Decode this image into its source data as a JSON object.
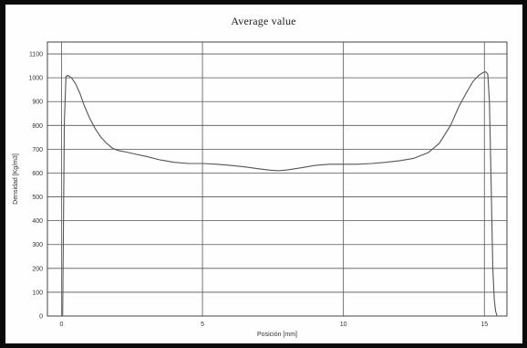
{
  "chart_data": {
    "type": "line",
    "title": "Average value",
    "xlabel": "Posición [mm]",
    "ylabel": "Densidad [Kg/m3]",
    "xlim": [
      -0.5,
      15.8
    ],
    "ylim": [
      0,
      1150
    ],
    "x_ticks": [
      0,
      5,
      10,
      15
    ],
    "y_ticks": [
      0,
      100,
      200,
      300,
      400,
      500,
      600,
      700,
      800,
      900,
      1000,
      1100
    ],
    "grid": true,
    "legend": "none",
    "line_color": "#555555",
    "grid_color": "#555555",
    "series": [
      {
        "x": [
          0.04,
          0.1,
          0.16,
          0.22,
          0.35,
          0.5,
          0.65,
          0.8,
          1.0,
          1.2,
          1.4,
          1.6,
          1.8,
          2.0,
          2.3,
          2.6,
          3.0,
          3.5,
          4.0,
          4.5,
          5.0,
          5.5,
          6.0,
          6.5,
          7.0,
          7.4,
          7.7,
          8.0,
          8.5,
          9.0,
          9.5,
          10.0,
          10.5,
          11.0,
          11.5,
          12.0,
          12.5,
          13.0,
          13.4,
          13.8,
          14.1,
          14.4,
          14.6,
          14.8,
          14.95,
          15.05,
          15.12,
          15.18,
          15.24,
          15.3,
          15.35,
          15.4,
          15.45
        ],
        "y": [
          0,
          820,
          1005,
          1010,
          1000,
          975,
          935,
          885,
          830,
          785,
          750,
          725,
          705,
          695,
          688,
          680,
          670,
          655,
          645,
          640,
          640,
          637,
          632,
          626,
          618,
          612,
          610,
          613,
          622,
          632,
          637,
          637,
          637,
          640,
          645,
          652,
          662,
          685,
          725,
          800,
          880,
          945,
          985,
          1010,
          1022,
          1025,
          1015,
          900,
          550,
          200,
          70,
          20,
          0
        ]
      }
    ]
  }
}
